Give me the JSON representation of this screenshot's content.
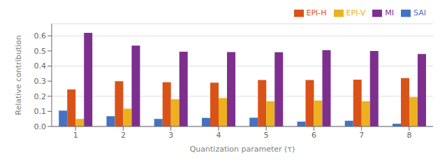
{
  "chart_data": {
    "type": "bar",
    "categories": [
      1,
      2,
      3,
      4,
      5,
      6,
      7,
      8
    ],
    "series": [
      {
        "name": "SAI",
        "color": "#4472C4",
        "values": [
          0.105,
          0.068,
          0.05,
          0.057,
          0.058,
          0.032,
          0.038,
          0.018
        ]
      },
      {
        "name": "EPI-H",
        "color": "#D95319",
        "values": [
          0.245,
          0.3,
          0.293,
          0.29,
          0.308,
          0.308,
          0.31,
          0.32
        ]
      },
      {
        "name": "EPI-V",
        "color": "#EDB120",
        "values": [
          0.05,
          0.118,
          0.18,
          0.188,
          0.167,
          0.172,
          0.167,
          0.195
        ]
      },
      {
        "name": "MI",
        "color": "#7E2F8E",
        "values": [
          0.62,
          0.535,
          0.495,
          0.493,
          0.492,
          0.505,
          0.5,
          0.48
        ]
      }
    ],
    "xlabel": "Quantization parameter (τ)",
    "ylabel": "Relative contribution",
    "ylim": [
      0,
      0.68
    ],
    "yticks": [
      {
        "value": 0,
        "label": "0.0"
      },
      0.1,
      0.2,
      0.3,
      0.4,
      0.5,
      0.6
    ],
    "grid": true,
    "legend": "upper right"
  }
}
